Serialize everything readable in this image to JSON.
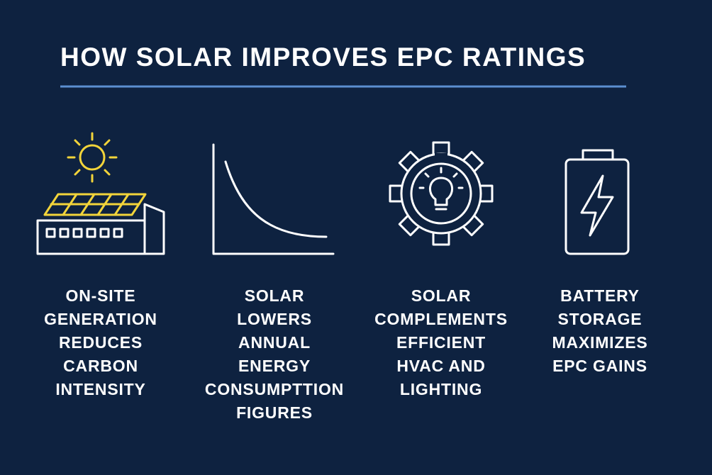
{
  "title": "HOW SOLAR IMPROVES EPC RATINGS",
  "items": [
    {
      "lines": [
        "ON-SITE",
        "GENERATION",
        "REDUCES",
        "CARBON",
        "INTENSITY"
      ]
    },
    {
      "lines": [
        "SOLAR",
        "LOWERS",
        "ANNUAL",
        "ENERGY",
        "CONSUMPTTION",
        "FIGURES"
      ]
    },
    {
      "lines": [
        "SOLAR",
        "COMPLEMENTS",
        "EFFICIENT",
        "HVAC AND",
        "LIGHTING"
      ]
    },
    {
      "lines": [
        "BATTERY",
        "STORAGE",
        "MAXIMIZES",
        "EPC GAINS"
      ]
    }
  ]
}
